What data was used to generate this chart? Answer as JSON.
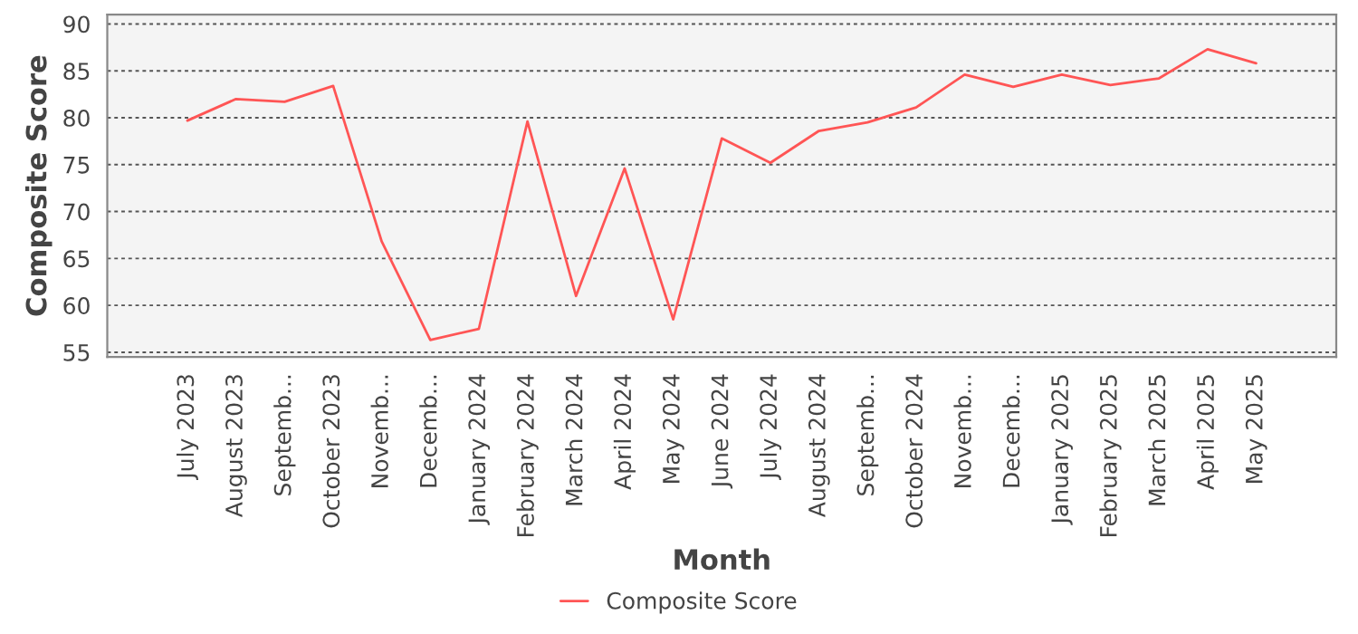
{
  "chart_data": {
    "type": "line",
    "xlabel": "Month",
    "ylabel": "Composite Score",
    "categories": [
      "July 2023",
      "August 2023",
      "Septemb...",
      "October 2023",
      "Novemb...",
      "Decemb...",
      "January 2024",
      "February 2024",
      "March 2024",
      "April 2024",
      "May 2024",
      "June 2024",
      "July 2024",
      "August 2024",
      "Septemb...",
      "October 2024",
      "Novemb...",
      "Decemb...",
      "January 2025",
      "February 2025",
      "March 2025",
      "April 2025",
      "May 2025"
    ],
    "series": [
      {
        "name": "Composite Score",
        "color": "#ff5555",
        "values": [
          79.7,
          82.0,
          81.7,
          83.4,
          66.8,
          56.3,
          57.5,
          79.6,
          61.0,
          74.6,
          58.5,
          77.8,
          75.2,
          78.6,
          79.5,
          81.1,
          84.6,
          83.3,
          84.6,
          83.5,
          84.2,
          87.3,
          85.8
        ]
      }
    ],
    "ylim": [
      54.5,
      91
    ],
    "yticks": [
      55,
      60,
      65,
      70,
      75,
      80,
      85,
      90
    ],
    "grid": "y",
    "legend": "bottom",
    "marker": "none",
    "line_style": "solid"
  }
}
